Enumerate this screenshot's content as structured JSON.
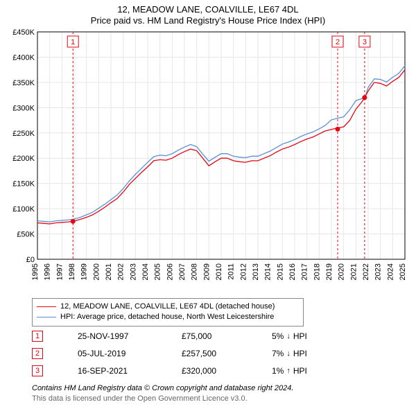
{
  "title": "12, MEADOW LANE, COALVILLE, LE67 4DL",
  "subtitle": "Price paid vs. HM Land Registry's House Price Index (HPI)",
  "chart": {
    "type": "line",
    "plot_background": "#ffffff",
    "grid_color": "#e6e6e6",
    "axis_color": "#000000",
    "y": {
      "min": 0,
      "max": 450000,
      "step": 50000,
      "ticks": [
        "£0",
        "£50K",
        "£100K",
        "£150K",
        "£200K",
        "£250K",
        "£300K",
        "£350K",
        "£400K",
        "£450K"
      ],
      "label_fontsize": 11
    },
    "x": {
      "min": 1995,
      "max": 2025,
      "step": 1,
      "ticks": [
        "1995",
        "1996",
        "1997",
        "1998",
        "1999",
        "2000",
        "2001",
        "2002",
        "2003",
        "2004",
        "2005",
        "2006",
        "2007",
        "2008",
        "2009",
        "2010",
        "2011",
        "2012",
        "2013",
        "2014",
        "2015",
        "2016",
        "2017",
        "2018",
        "2019",
        "2020",
        "2021",
        "2022",
        "2023",
        "2024",
        "2025"
      ],
      "label_fontsize": 11,
      "label_rotation": -90
    },
    "series": [
      {
        "name": "12, MEADOW LANE, COALVILLE, LE67 4DL (detached house)",
        "color": "#e30613",
        "line_width": 1.3,
        "x": [
          1995,
          1995.5,
          1996,
          1996.5,
          1997,
          1997.5,
          1997.9,
          1998.5,
          1999,
          1999.5,
          2000,
          2000.5,
          2001,
          2001.5,
          2002,
          2002.5,
          2003,
          2003.5,
          2004,
          2004.5,
          2005,
          2005.5,
          2006,
          2006.5,
          2007,
          2007.5,
          2008,
          2008.5,
          2009,
          2009.5,
          2010,
          2010.5,
          2011,
          2011.5,
          2012,
          2012.5,
          2013,
          2013.5,
          2014,
          2014.5,
          2015,
          2015.5,
          2016,
          2016.5,
          2017,
          2017.5,
          2018,
          2018.5,
          2019,
          2019.5,
          2020,
          2020.5,
          2021,
          2021.5,
          2021.71,
          2022,
          2022.5,
          2023,
          2023.5,
          2024,
          2024.5,
          2025
        ],
        "y": [
          72000,
          71000,
          70000,
          72000,
          73000,
          74000,
          75000,
          79000,
          83000,
          88000,
          95000,
          103000,
          112000,
          120000,
          133000,
          148000,
          160000,
          172000,
          183000,
          195000,
          197000,
          196000,
          200000,
          207000,
          213000,
          218000,
          215000,
          200000,
          185000,
          193000,
          200000,
          200000,
          195000,
          193000,
          192000,
          195000,
          195000,
          200000,
          205000,
          212000,
          218000,
          222000,
          227000,
          233000,
          238000,
          242000,
          248000,
          254000,
          257000,
          260000,
          262000,
          275000,
          297000,
          312000,
          320000,
          333000,
          350000,
          348000,
          343000,
          352000,
          360000,
          375000
        ]
      },
      {
        "name": "HPI: Average price, detached house, North West Leicestershire",
        "color": "#5a8fd6",
        "line_width": 1.3,
        "x": [
          1995,
          1995.5,
          1996,
          1996.5,
          1997,
          1997.5,
          1997.9,
          1998.5,
          1999,
          1999.5,
          2000,
          2000.5,
          2001,
          2001.5,
          2002,
          2002.5,
          2003,
          2003.5,
          2004,
          2004.5,
          2005,
          2005.5,
          2006,
          2006.5,
          2007,
          2007.5,
          2008,
          2008.5,
          2009,
          2009.5,
          2010,
          2010.5,
          2011,
          2011.5,
          2012,
          2012.5,
          2013,
          2013.5,
          2014,
          2014.5,
          2015,
          2015.5,
          2016,
          2016.5,
          2017,
          2017.5,
          2018,
          2018.5,
          2019,
          2019.5,
          2020,
          2020.5,
          2021,
          2021.5,
          2021.71,
          2022,
          2022.5,
          2023,
          2023.5,
          2024,
          2024.5,
          2025
        ],
        "y": [
          76000,
          75000,
          74000,
          76000,
          77000,
          78000,
          79000,
          83000,
          88000,
          93000,
          101000,
          109000,
          118000,
          127000,
          140000,
          155000,
          168000,
          180000,
          192000,
          203000,
          206000,
          205000,
          209000,
          216000,
          222000,
          227000,
          223000,
          208000,
          194000,
          202000,
          209000,
          209000,
          204000,
          202000,
          201000,
          204000,
          204000,
          209000,
          214000,
          221000,
          228000,
          232000,
          237000,
          243000,
          248000,
          252000,
          258000,
          265000,
          276000,
          279000,
          282000,
          296000,
          314000,
          318000,
          318000,
          340000,
          357000,
          356000,
          351000,
          360000,
          368000,
          383000
        ]
      }
    ],
    "sale_markers": {
      "color": "#e30613",
      "radius": 3.5,
      "line_dash": "3,3",
      "badge_border": "#e30613",
      "points": [
        {
          "n": "1",
          "x": 1997.9,
          "y": 75000
        },
        {
          "n": "2",
          "x": 2019.51,
          "y": 257500
        },
        {
          "n": "3",
          "x": 2021.71,
          "y": 320000
        }
      ]
    }
  },
  "legend": {
    "border_color": "#888888",
    "items": [
      {
        "color": "#e30613",
        "label": "12, MEADOW LANE, COALVILLE, LE67 4DL (detached house)"
      },
      {
        "color": "#5a8fd6",
        "label": "HPI: Average price, detached house, North West Leicestershire"
      }
    ]
  },
  "sales": [
    {
      "n": "1",
      "date": "25-NOV-1997",
      "price": "£75,000",
      "diff_pct": "5%",
      "dir": "down",
      "dir_glyph": "↓",
      "vs": "HPI"
    },
    {
      "n": "2",
      "date": "05-JUL-2019",
      "price": "£257,500",
      "diff_pct": "7%",
      "dir": "down",
      "dir_glyph": "↓",
      "vs": "HPI"
    },
    {
      "n": "3",
      "date": "16-SEP-2021",
      "price": "£320,000",
      "diff_pct": "1%",
      "dir": "up",
      "dir_glyph": "↑",
      "vs": "HPI"
    }
  ],
  "footer": {
    "line1": "Contains HM Land Registry data © Crown copyright and database right 2024.",
    "line2": "This data is licensed under the Open Government Licence v3.0.",
    "text_color_secondary": "#666666"
  }
}
